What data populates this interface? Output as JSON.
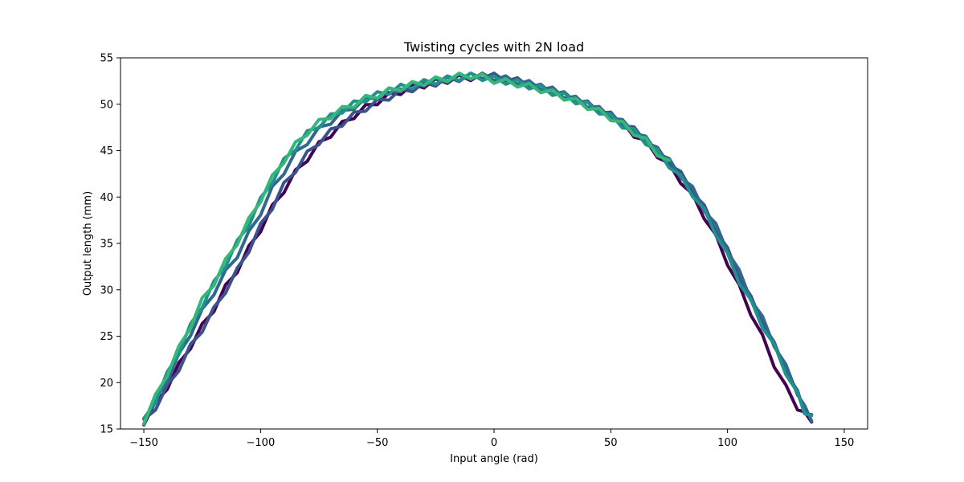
{
  "chart_data": {
    "type": "line",
    "title": "Twisting cycles with 2N load",
    "xlabel": "Input angle (rad)",
    "ylabel": "Output length (mm)",
    "xlim": [
      -160,
      160
    ],
    "ylim": [
      15,
      55
    ],
    "xticks": [
      -150,
      -100,
      -50,
      0,
      50,
      100,
      150
    ],
    "yticks": [
      15,
      20,
      25,
      30,
      35,
      40,
      45,
      50,
      55
    ],
    "xtick_labels": [
      "−150",
      "−100",
      "−50",
      "0",
      "50",
      "100",
      "150"
    ],
    "ytick_labels": [
      "15",
      "20",
      "25",
      "30",
      "35",
      "40",
      "45",
      "50",
      "55"
    ],
    "grid": false,
    "legend": "none",
    "series": [
      {
        "color": "#440154",
        "x": [
          -150,
          -145,
          -140,
          -135,
          -130,
          -125,
          -120,
          -115,
          -110,
          -105,
          -100,
          -95,
          -90,
          -85,
          -80,
          -75,
          -70,
          -65,
          -60,
          -55,
          -50,
          -45,
          -40,
          -35,
          -30,
          -25,
          -20,
          -15,
          -10,
          -5,
          0,
          5,
          10,
          15,
          20,
          25,
          30,
          35,
          40,
          45,
          50,
          55,
          60,
          65,
          70,
          75,
          80,
          85,
          90,
          95,
          100,
          105,
          110,
          115,
          120,
          125,
          130,
          133,
          136
        ],
        "y": [
          15.8,
          17.6,
          19.6,
          21.8,
          24.0,
          26.0,
          28.0,
          30.2,
          32.2,
          34.4,
          36.6,
          38.8,
          40.8,
          42.6,
          44.2,
          45.6,
          46.8,
          47.8,
          48.8,
          49.6,
          50.3,
          50.9,
          51.4,
          51.8,
          52.1,
          52.4,
          52.6,
          52.8,
          52.9,
          53.0,
          52.9,
          52.7,
          52.4,
          52.1,
          51.8,
          51.4,
          50.9,
          50.4,
          49.9,
          49.3,
          48.6,
          47.8,
          46.8,
          45.8,
          44.6,
          43.3,
          41.8,
          40.0,
          38.0,
          35.6,
          33.0,
          30.2,
          27.6,
          24.8,
          22.0,
          19.4,
          17.4,
          16.5,
          16.1
        ]
      },
      {
        "color": "#3b528b",
        "x": [
          -150,
          -145,
          -140,
          -135,
          -130,
          -125,
          -120,
          -115,
          -110,
          -105,
          -100,
          -95,
          -90,
          -85,
          -80,
          -75,
          -70,
          -65,
          -60,
          -55,
          -50,
          -45,
          -40,
          -35,
          -30,
          -25,
          -20,
          -15,
          -10,
          -5,
          0,
          5,
          10,
          15,
          20,
          25,
          30,
          35,
          40,
          45,
          50,
          55,
          60,
          65,
          70,
          75,
          80,
          85,
          90,
          95,
          100,
          105,
          110,
          115,
          120,
          125,
          130,
          133,
          136
        ],
        "y": [
          15.7,
          17.4,
          19.4,
          21.6,
          23.8,
          25.8,
          27.8,
          30.0,
          32.0,
          34.4,
          36.8,
          39.0,
          41.2,
          43.0,
          44.6,
          46.0,
          47.0,
          48.0,
          48.8,
          49.6,
          50.2,
          50.8,
          51.3,
          51.7,
          52.0,
          52.3,
          52.6,
          52.8,
          53.0,
          53.1,
          53.0,
          52.8,
          52.5,
          52.2,
          51.8,
          51.4,
          51.0,
          50.5,
          50.0,
          49.4,
          48.8,
          48.0,
          47.2,
          46.2,
          45.0,
          43.8,
          42.4,
          40.8,
          38.8,
          36.6,
          34.2,
          31.6,
          29.0,
          26.6,
          24.0,
          21.4,
          18.8,
          17.0,
          16.2
        ]
      },
      {
        "color": "#31688e",
        "x": [
          -150,
          -145,
          -140,
          -135,
          -130,
          -125,
          -120,
          -115,
          -110,
          -105,
          -100,
          -95,
          -90,
          -85,
          -80,
          -75,
          -70,
          -65,
          -60,
          -55,
          -50,
          -45,
          -40,
          -35,
          -30,
          -25,
          -20,
          -15,
          -10,
          -5,
          0,
          5,
          10,
          15,
          20,
          25,
          30,
          35,
          40,
          45,
          50,
          55,
          60,
          65,
          70,
          75,
          80,
          85,
          90,
          95,
          100,
          105,
          110,
          115,
          120,
          125,
          130,
          133,
          136
        ],
        "y": [
          15.9,
          18.0,
          20.4,
          22.8,
          25.4,
          27.6,
          29.8,
          31.8,
          33.8,
          36.0,
          38.4,
          40.8,
          42.8,
          44.6,
          46.0,
          47.2,
          48.2,
          49.0,
          49.8,
          50.4,
          50.9,
          51.4,
          51.7,
          52.0,
          52.3,
          52.5,
          52.7,
          52.9,
          53.0,
          53.0,
          52.9,
          52.7,
          52.5,
          52.2,
          51.9,
          51.5,
          51.0,
          50.5,
          50.0,
          49.4,
          48.8,
          48.0,
          47.2,
          46.2,
          45.0,
          43.8,
          42.4,
          40.8,
          38.8,
          36.8,
          34.4,
          31.8,
          29.2,
          26.8,
          24.2,
          21.6,
          19.0,
          17.2,
          16.2
        ]
      },
      {
        "color": "#21918c",
        "x": [
          -150,
          -145,
          -140,
          -135,
          -130,
          -125,
          -120,
          -115,
          -110,
          -105,
          -100,
          -95,
          -90,
          -85,
          -80,
          -75,
          -70,
          -65,
          -60,
          -55,
          -50,
          -45,
          -40,
          -35,
          -30,
          -25,
          -20,
          -15,
          -10,
          -5,
          0,
          5,
          10,
          15,
          20,
          25,
          30,
          35,
          40,
          45,
          50,
          55,
          60,
          65,
          70,
          75,
          80,
          85,
          90,
          95,
          100,
          105,
          110,
          115,
          120,
          125,
          130,
          133,
          136
        ],
        "y": [
          15.8,
          18.2,
          20.8,
          23.4,
          26.0,
          28.4,
          30.6,
          32.8,
          35.0,
          37.2,
          39.6,
          41.8,
          43.8,
          45.4,
          46.8,
          47.8,
          48.6,
          49.4,
          50.0,
          50.6,
          51.0,
          51.4,
          51.8,
          52.0,
          52.3,
          52.5,
          52.7,
          52.9,
          53.0,
          52.9,
          52.7,
          52.5,
          52.3,
          52.0,
          51.7,
          51.3,
          50.9,
          50.4,
          49.9,
          49.3,
          48.6,
          47.8,
          47.0,
          46.0,
          44.8,
          43.5,
          42.0,
          40.4,
          38.4,
          36.2,
          33.6,
          31.0,
          28.6,
          26.2,
          23.8,
          21.2,
          18.6,
          17.0,
          16.1
        ]
      },
      {
        "color": "#35b779",
        "x": [
          -150,
          -145,
          -140,
          -135,
          -130,
          -125,
          -120,
          -115,
          -110,
          -105,
          -100,
          -95,
          -90,
          -85,
          -80,
          -75,
          -70,
          -65,
          -60,
          -55,
          -50,
          -45,
          -40,
          -35,
          -30,
          -25,
          -20,
          -15,
          -10,
          -5,
          0,
          5,
          10,
          15,
          20,
          25,
          30,
          35,
          40,
          45,
          50,
          55,
          60,
          65,
          70,
          75
        ],
        "y": [
          15.9,
          18.4,
          21.0,
          23.6,
          26.2,
          28.8,
          30.8,
          33.0,
          35.2,
          37.4,
          39.8,
          42.0,
          44.0,
          45.6,
          47.0,
          48.0,
          48.8,
          49.4,
          50.0,
          50.6,
          51.0,
          51.4,
          51.8,
          52.1,
          52.4,
          52.6,
          52.8,
          53.0,
          53.1,
          52.9,
          52.6,
          52.4,
          52.2,
          51.9,
          51.6,
          51.2,
          50.8,
          50.3,
          49.8,
          49.2,
          48.6,
          47.8,
          47.0,
          46.0,
          44.8,
          43.6
        ]
      }
    ]
  }
}
